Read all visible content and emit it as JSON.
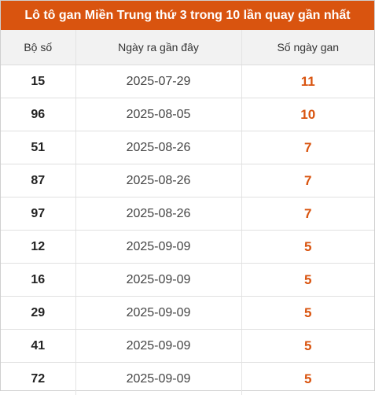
{
  "title": "Lô tô gan Miền Trung thứ 3 trong 10 lần quay gần nhất",
  "colors": {
    "header_bg": "#d9540f",
    "accent_value": "#d9540f",
    "header_row_bg": "#f2f2f2"
  },
  "columns": [
    "Bộ số",
    "Ngày ra gần đây",
    "Số ngày gan"
  ],
  "rows": [
    {
      "number": "15",
      "date": "2025-07-29",
      "days": "11"
    },
    {
      "number": "96",
      "date": "2025-08-05",
      "days": "10"
    },
    {
      "number": "51",
      "date": "2025-08-26",
      "days": "7"
    },
    {
      "number": "87",
      "date": "2025-08-26",
      "days": "7"
    },
    {
      "number": "97",
      "date": "2025-08-26",
      "days": "7"
    },
    {
      "number": "12",
      "date": "2025-09-09",
      "days": "5"
    },
    {
      "number": "16",
      "date": "2025-09-09",
      "days": "5"
    },
    {
      "number": "29",
      "date": "2025-09-09",
      "days": "5"
    },
    {
      "number": "41",
      "date": "2025-09-09",
      "days": "5"
    },
    {
      "number": "72",
      "date": "2025-09-09",
      "days": "5"
    }
  ]
}
